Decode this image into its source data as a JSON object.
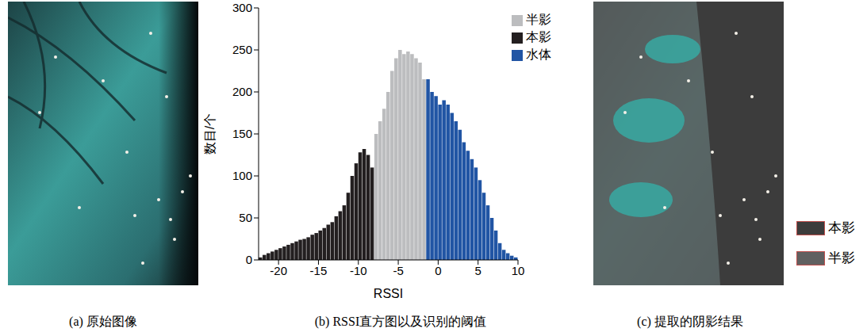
{
  "chart_data": {
    "type": "histogram",
    "xlabel": "RSSI",
    "ylabel": "数目/个",
    "bins": [
      -22.5,
      -22,
      -21.5,
      -21,
      -20.5,
      -20,
      -19.5,
      -19,
      -18.5,
      -18,
      -17.5,
      -17,
      -16.5,
      -16,
      -15.5,
      -15,
      -14.5,
      -14,
      -13.5,
      -13,
      -12.5,
      -12,
      -11.5,
      -11,
      -10.5,
      -10,
      -9.5,
      -9,
      -8.5,
      -8,
      -7.5,
      -7,
      -6.5,
      -6,
      -5.5,
      -5,
      -4.5,
      -4,
      -3.5,
      -3,
      -2.5,
      -2,
      -1.5,
      -1,
      -0.5,
      0,
      0.5,
      1,
      1.5,
      2,
      2.5,
      3,
      3.5,
      4,
      4.5,
      5,
      5.5,
      6,
      6.5,
      7,
      7.5,
      8,
      8.5,
      9,
      9.5,
      10
    ],
    "series": [
      {
        "name": "本影",
        "color": "#231f20",
        "values": [
          3,
          6,
          8,
          10,
          12,
          14,
          16,
          18,
          20,
          22,
          24,
          25,
          27,
          30,
          32,
          35,
          38,
          42,
          45,
          52,
          58,
          65,
          80,
          100,
          115,
          128,
          132,
          125,
          110,
          null,
          null,
          null,
          null,
          null,
          null,
          null,
          null,
          null,
          null,
          null,
          null,
          null,
          null,
          null,
          null,
          null,
          null,
          null,
          null,
          null,
          null,
          null,
          null,
          null,
          null,
          null,
          null,
          null,
          null,
          null,
          null,
          null,
          null,
          null,
          null
        ]
      },
      {
        "name": "半影",
        "color": "#bcbdbf",
        "values": [
          null,
          null,
          null,
          null,
          null,
          null,
          null,
          null,
          null,
          null,
          null,
          null,
          null,
          null,
          null,
          null,
          null,
          null,
          null,
          null,
          null,
          null,
          null,
          null,
          null,
          null,
          null,
          null,
          null,
          150,
          165,
          180,
          200,
          225,
          240,
          250,
          245,
          248,
          245,
          240,
          235,
          215,
          null,
          null,
          null,
          null,
          null,
          null,
          null,
          null,
          null,
          null,
          null,
          null,
          null,
          null,
          null,
          null,
          null,
          null,
          null,
          null,
          null,
          null,
          null
        ]
      },
      {
        "name": "水体",
        "color": "#2155a4",
        "values": [
          null,
          null,
          null,
          null,
          null,
          null,
          null,
          null,
          null,
          null,
          null,
          null,
          null,
          null,
          null,
          null,
          null,
          null,
          null,
          null,
          null,
          null,
          null,
          null,
          null,
          null,
          null,
          null,
          null,
          null,
          null,
          null,
          null,
          null,
          null,
          null,
          null,
          null,
          null,
          null,
          null,
          null,
          215,
          200,
          195,
          185,
          190,
          185,
          175,
          165,
          155,
          140,
          130,
          120,
          110,
          95,
          80,
          65,
          50,
          35,
          20,
          12,
          8,
          5,
          3
        ]
      }
    ],
    "xlim": [
      -22.5,
      10
    ],
    "xticks": [
      -20,
      -15,
      -10,
      -5,
      0,
      5,
      10
    ],
    "ylim": [
      0,
      300
    ],
    "yticks": [
      0,
      50,
      100,
      150,
      200,
      250,
      300
    ],
    "legend": "upper right",
    "grid": false
  },
  "panels": [
    {
      "caption": "(a) 原始图像"
    },
    {
      "caption": "(b) RSSI直方图以及识别的阈值"
    },
    {
      "caption": "(c) 提取的阴影结果",
      "legend": [
        {
          "name": "本影",
          "color": "#3c3c3c"
        },
        {
          "name": "半影",
          "color": "#606060"
        }
      ]
    }
  ]
}
